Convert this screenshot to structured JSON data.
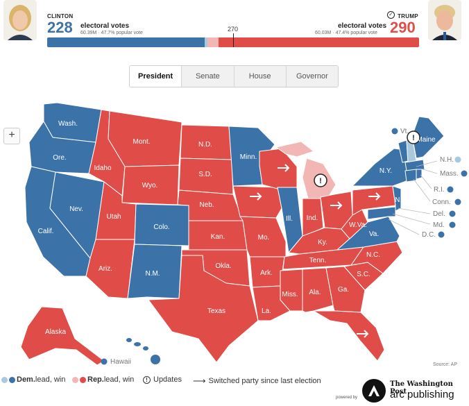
{
  "header": {
    "clinton": {
      "name": "CLINTON",
      "ev": "228",
      "ev_label": "electoral votes",
      "popular": "60.39M · 47.7% popular vote"
    },
    "trump": {
      "name": "TRUMP",
      "ev": "290",
      "ev_label": "electoral votes",
      "popular": "60.03M · 47.4% popular vote"
    },
    "threshold": "270"
  },
  "bar": {
    "total": 538,
    "dem_win": 228,
    "dem_lead": 4,
    "rep_lead": 16,
    "rep_win": 290
  },
  "colors": {
    "dem": "#3b72a8",
    "dem_light": "#a9c9df",
    "rep": "#e04c48",
    "rep_light": "#f2b6b4",
    "undecided": "#e8c7c7"
  },
  "tabs": [
    {
      "label": "President",
      "active": true
    },
    {
      "label": "Senate"
    },
    {
      "label": "House"
    },
    {
      "label": "Governor"
    }
  ],
  "zoom_label": "+",
  "states": {
    "wash": "Wash.",
    "ore": "Ore.",
    "calif": "Calif.",
    "nev": "Nev.",
    "idaho": "Idaho",
    "mont": "Mont.",
    "wyo": "Wyo.",
    "utah": "Utah",
    "colo": "Colo.",
    "ariz": "Ariz.",
    "nm": "N.M.",
    "nd": "N.D.",
    "sd": "S.D.",
    "neb": "Neb.",
    "kan": "Kan.",
    "okla": "Okla.",
    "texas": "Texas",
    "minn": "Minn.",
    "iowa": "",
    "mo": "Mo.",
    "ark": "Ark.",
    "la": "La.",
    "wis": "",
    "ill": "Ill.",
    "ind": "Ind.",
    "ky": "Ky.",
    "tenn": "Tenn.",
    "miss": "Miss.",
    "ala": "Ala.",
    "ga": "Ga.",
    "fla": "",
    "sc": "S.C.",
    "nc": "N.C.",
    "va": "Va.",
    "wva": "W.Va.",
    "ohio": "",
    "pa": "",
    "ny": "N.Y.",
    "nj": "N.J.",
    "maine": "Maine",
    "alaska": "Alaska",
    "hawaii": "Hawaii"
  },
  "small_states": {
    "vt": "Vt.",
    "nh": "N.H.",
    "mass": "Mass.",
    "ri": "R.I.",
    "conn": "Conn.",
    "del": "Del.",
    "md": "Md.",
    "dc": "D.C."
  },
  "legend": {
    "dem": "Dem.",
    "dem_suffix": " lead, win",
    "rep": "Rep.",
    "rep_suffix": " lead, win",
    "updates": "Updates",
    "switched": "Switched party since last election"
  },
  "source": "Source: AP",
  "powered_by": "powered by",
  "wapo": "The Washington Post",
  "arc": "arc publishing"
}
